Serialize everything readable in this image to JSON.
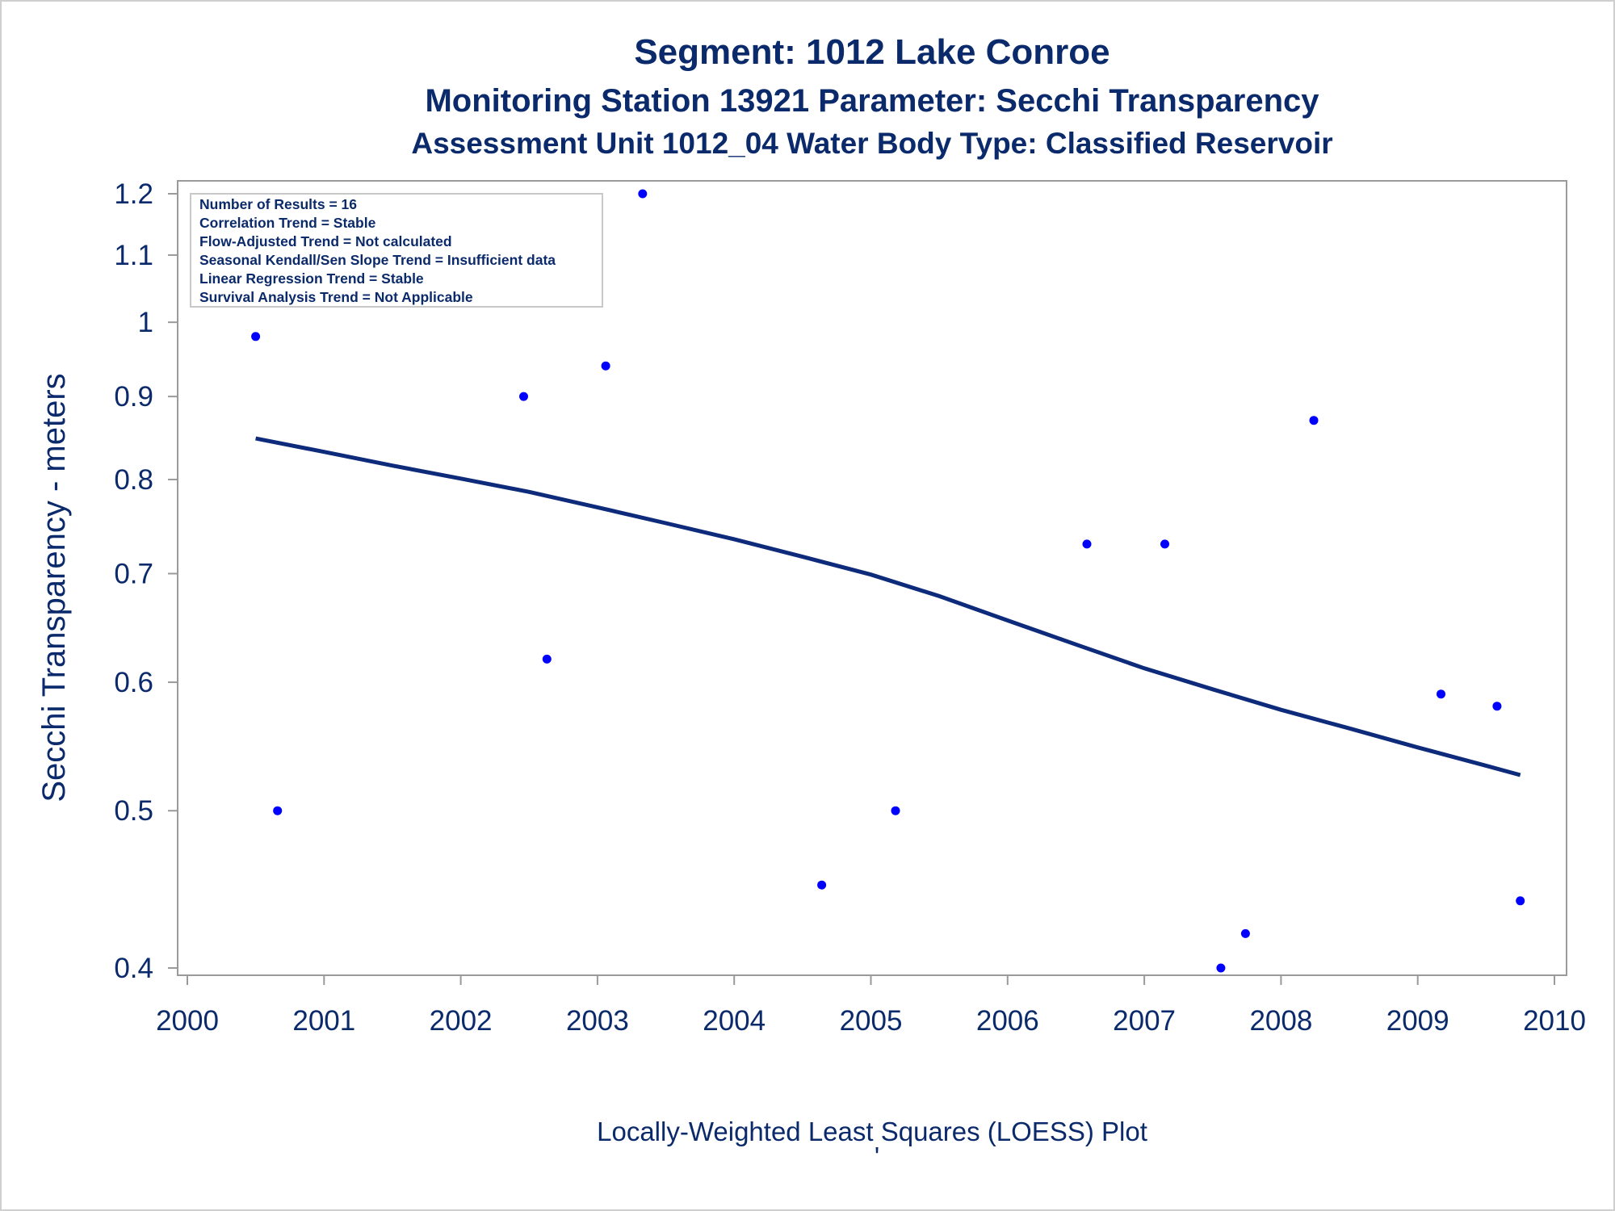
{
  "colors": {
    "text": "#0b2a6b",
    "points": "#0000ff",
    "loess_line": "#0d2b7a",
    "axis": "#9a9a9a",
    "inset_border": "#c8c8c8"
  },
  "chart_data": {
    "type": "scatter",
    "title": "Segment: 1012  Lake Conroe",
    "subtitle": "Monitoring Station 13921 Parameter: Secchi Transparency",
    "subtitle2": "Assessment Unit 1012_04   Water Body Type: Classified Reservoir",
    "xlabel": "",
    "ylabel": "Secchi Transparency - meters",
    "footnote": "Locally-Weighted Least Squares (LOESS) Plot",
    "footnote_mark": "'",
    "y_scale": "log",
    "xlim": [
      2000,
      2010
    ],
    "ylim": [
      0.4,
      1.2
    ],
    "x_ticks": [
      2000,
      2001,
      2002,
      2003,
      2004,
      2005,
      2006,
      2007,
      2008,
      2009,
      2010
    ],
    "x_tick_labels": [
      "2000",
      "2001",
      "2002",
      "2003",
      "2004",
      "2005",
      "2006",
      "2007",
      "2008",
      "2009",
      "2010"
    ],
    "y_ticks": [
      0.4,
      0.5,
      0.6,
      0.7,
      0.8,
      0.9,
      1.0,
      1.1,
      1.2
    ],
    "y_tick_labels": [
      "0.4",
      "0.5",
      "0.6",
      "0.7",
      "0.8",
      "0.9",
      "1",
      "1.1",
      "1.2"
    ],
    "grid": false,
    "stats_box_location": "top-left",
    "stats_box": [
      "Number of Results = 16",
      "Correlation Trend = Stable",
      "Flow-Adjusted Trend = Not calculated",
      "Seasonal Kendall/Sen Slope Trend = Insufficient data",
      "Linear Regression Trend = Stable",
      "Survival Analysis Trend = Not Applicable"
    ],
    "points": [
      {
        "x": 2000.5,
        "y": 0.98
      },
      {
        "x": 2000.66,
        "y": 0.5
      },
      {
        "x": 2002.46,
        "y": 0.9
      },
      {
        "x": 2002.63,
        "y": 0.62
      },
      {
        "x": 2003.06,
        "y": 0.94
      },
      {
        "x": 2003.33,
        "y": 1.2
      },
      {
        "x": 2004.64,
        "y": 0.45
      },
      {
        "x": 2005.18,
        "y": 0.5
      },
      {
        "x": 2006.58,
        "y": 0.73
      },
      {
        "x": 2007.15,
        "y": 0.73
      },
      {
        "x": 2007.56,
        "y": 0.4
      },
      {
        "x": 2007.74,
        "y": 0.42
      },
      {
        "x": 2008.24,
        "y": 0.87
      },
      {
        "x": 2009.17,
        "y": 0.59
      },
      {
        "x": 2009.58,
        "y": 0.58
      },
      {
        "x": 2009.75,
        "y": 0.44
      }
    ],
    "loess": {
      "x": [
        2000.5,
        2001.0,
        2001.5,
        2002.0,
        2002.5,
        2003.0,
        2003.5,
        2004.0,
        2004.5,
        2005.0,
        2005.5,
        2006.0,
        2006.5,
        2007.0,
        2007.5,
        2008.0,
        2008.5,
        2009.0,
        2009.5,
        2009.75
      ],
      "y": [
        0.848,
        0.832,
        0.816,
        0.801,
        0.786,
        0.769,
        0.752,
        0.735,
        0.717,
        0.699,
        0.678,
        0.655,
        0.633,
        0.612,
        0.594,
        0.577,
        0.562,
        0.547,
        0.533,
        0.526
      ]
    }
  }
}
